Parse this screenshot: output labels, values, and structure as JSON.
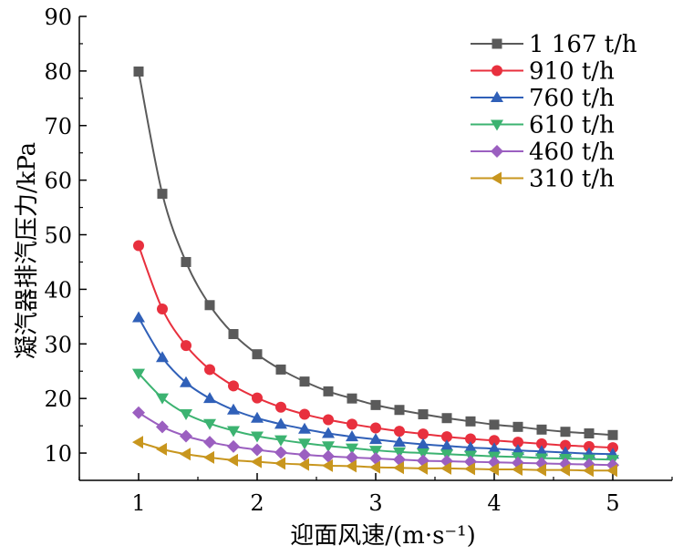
{
  "chart_data": {
    "type": "line",
    "xlabel": "迎面风速/(m·s⁻¹)",
    "ylabel": "凝汽器排汽压力/kPa",
    "xlim": [
      0.5,
      5.5
    ],
    "ylim": [
      5,
      90
    ],
    "x_ticks": [
      "1",
      "2",
      "3",
      "4",
      "5"
    ],
    "y_ticks": [
      "10",
      "20",
      "30",
      "40",
      "50",
      "60",
      "70",
      "80",
      "90"
    ],
    "legend_position": "top-right",
    "x": [
      1.0,
      1.2,
      1.4,
      1.6,
      1.8,
      2.0,
      2.2,
      2.4,
      2.6,
      2.8,
      3.0,
      3.2,
      3.4,
      3.6,
      3.8,
      4.0,
      4.2,
      4.4,
      4.6,
      4.8,
      5.0
    ],
    "series": [
      {
        "name": "1 167 t/h",
        "color": "#5a5a5a",
        "marker": "square",
        "values": [
          79.9,
          57.5,
          45.0,
          37.1,
          31.8,
          28.1,
          25.3,
          23.1,
          21.3,
          20.0,
          18.8,
          17.9,
          17.1,
          16.4,
          15.8,
          15.2,
          14.8,
          14.3,
          13.9,
          13.6,
          13.3
        ]
      },
      {
        "name": "910  t/h",
        "color": "#e8303e",
        "marker": "circle",
        "values": [
          48.0,
          36.4,
          29.7,
          25.3,
          22.3,
          20.1,
          18.4,
          17.1,
          16.1,
          15.3,
          14.6,
          14.0,
          13.5,
          13.0,
          12.6,
          12.3,
          12.0,
          11.7,
          11.4,
          11.2,
          11.0
        ]
      },
      {
        "name": "760  t/h",
        "color": "#3060b8",
        "marker": "triangle-up",
        "values": [
          34.8,
          27.5,
          22.9,
          20.0,
          17.9,
          16.4,
          15.3,
          14.4,
          13.6,
          13.0,
          12.5,
          12.0,
          11.6,
          11.3,
          11.0,
          10.8,
          10.5,
          10.3,
          10.1,
          9.9,
          9.8
        ]
      },
      {
        "name": "610  t/h",
        "color": "#3cb371",
        "marker": "triangle-down",
        "values": [
          24.6,
          20.1,
          17.2,
          15.4,
          14.1,
          13.1,
          12.4,
          11.8,
          11.3,
          10.9,
          10.5,
          10.2,
          10.0,
          9.8,
          9.6,
          9.4,
          9.3,
          9.1,
          9.0,
          8.9,
          8.8
        ]
      },
      {
        "name": "460  t/h",
        "color": "#9b5fc0",
        "marker": "diamond",
        "values": [
          17.4,
          14.8,
          13.1,
          12.0,
          11.2,
          10.6,
          10.1,
          9.7,
          9.4,
          9.2,
          9.0,
          8.8,
          8.6,
          8.5,
          8.4,
          8.3,
          8.2,
          8.1,
          8.0,
          7.9,
          7.8
        ]
      },
      {
        "name": "310  t/h",
        "color": "#c8961e",
        "marker": "triangle-left",
        "values": [
          12.0,
          10.7,
          9.8,
          9.2,
          8.7,
          8.4,
          8.1,
          7.9,
          7.7,
          7.6,
          7.4,
          7.3,
          7.2,
          7.2,
          7.1,
          7.0,
          7.0,
          6.9,
          6.9,
          6.8,
          6.8
        ]
      }
    ]
  }
}
